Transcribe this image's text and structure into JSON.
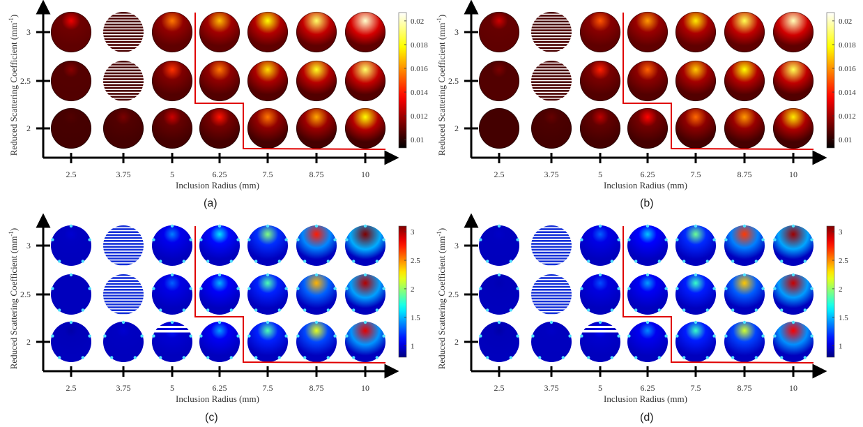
{
  "chart_data": [
    {
      "type": "heatmap",
      "panel": "(a)",
      "colormap": "hot",
      "xlabel": "Inclusion Radius (mm)",
      "ylabel": "Reduced Scattering Coefficient (mm",
      "ylabel_sup": "-1",
      "ylabel_close": ")",
      "x_ticks": [
        "2.5",
        "3.75",
        "5",
        "6.25",
        "7.5",
        "8.75",
        "10"
      ],
      "y_ticks": [
        "3",
        "2.5",
        "2"
      ],
      "colorbar_ticks": [
        "0.02",
        "0.018",
        "0.016",
        "0.014",
        "0.012",
        "0.01"
      ],
      "colorbar_range": [
        0.0093,
        0.0207
      ],
      "values": [
        [
          0.35,
          0.0,
          0.55,
          0.65,
          0.75,
          0.85,
          0.95
        ],
        [
          0.2,
          0.0,
          0.45,
          0.55,
          0.7,
          0.78,
          0.85
        ],
        [
          0.12,
          0.18,
          0.3,
          0.4,
          0.55,
          0.62,
          0.75
        ]
      ],
      "striped_cells": [
        [
          0,
          1
        ],
        [
          1,
          1
        ]
      ],
      "partial_stripe_cells": [],
      "boundary": "staircase"
    },
    {
      "type": "heatmap",
      "panel": "(b)",
      "colormap": "hot",
      "xlabel": "Inclusion Radius (mm)",
      "ylabel": "Reduced Scattering Coefficient (mm",
      "ylabel_sup": "-1",
      "ylabel_close": ")",
      "x_ticks": [
        "2.5",
        "3.75",
        "5",
        "6.25",
        "7.5",
        "8.75",
        "10"
      ],
      "y_ticks": [
        "3",
        "2.5",
        "2"
      ],
      "colorbar_ticks": [
        "0.02",
        "0.018",
        "0.016",
        "0.014",
        "0.012",
        "0.01"
      ],
      "colorbar_range": [
        0.0093,
        0.0207
      ],
      "values": [
        [
          0.3,
          0.0,
          0.5,
          0.6,
          0.72,
          0.83,
          0.93
        ],
        [
          0.18,
          0.0,
          0.42,
          0.52,
          0.67,
          0.75,
          0.83
        ],
        [
          0.1,
          0.15,
          0.28,
          0.38,
          0.53,
          0.6,
          0.72
        ]
      ],
      "striped_cells": [
        [
          0,
          1
        ],
        [
          1,
          1
        ]
      ],
      "partial_stripe_cells": [],
      "boundary": "staircase"
    },
    {
      "type": "heatmap",
      "panel": "(c)",
      "colormap": "jet",
      "xlabel": "Inclusion Radius (mm)",
      "ylabel": "Reduced Scattering Coefficient (mm",
      "ylabel_sup": "-1",
      "ylabel_close": ")",
      "x_ticks": [
        "2.5",
        "3.75",
        "5",
        "6.25",
        "7.5",
        "8.75",
        "10"
      ],
      "y_ticks": [
        "3",
        "2.5",
        "2"
      ],
      "colorbar_ticks": [
        "3",
        "2.5",
        "2",
        "1.5",
        "1"
      ],
      "colorbar_range": [
        0.8,
        3.1
      ],
      "values": [
        [
          0.08,
          0.0,
          0.25,
          0.35,
          0.5,
          0.85,
          1.0
        ],
        [
          0.06,
          0.0,
          0.22,
          0.3,
          0.45,
          0.7,
          0.95
        ],
        [
          0.04,
          0.08,
          0.15,
          0.28,
          0.45,
          0.6,
          0.9
        ]
      ],
      "striped_cells": [
        [
          0,
          1
        ],
        [
          1,
          1
        ]
      ],
      "partial_stripe_cells": [
        [
          2,
          2
        ]
      ],
      "boundary": "staircase"
    },
    {
      "type": "heatmap",
      "panel": "(d)",
      "colormap": "jet",
      "xlabel": "Inclusion Radius (mm)",
      "ylabel": "Reduced Scattering Coefficient (mm",
      "ylabel_sup": "-1",
      "ylabel_close": ")",
      "x_ticks": [
        "2.5",
        "3.75",
        "5",
        "6.25",
        "7.5",
        "8.75",
        "10"
      ],
      "y_ticks": [
        "3",
        "2.5",
        "2"
      ],
      "colorbar_ticks": [
        "3",
        "2.5",
        "2",
        "1.5",
        "1"
      ],
      "colorbar_range": [
        0.8,
        3.1
      ],
      "values": [
        [
          0.07,
          0.0,
          0.22,
          0.32,
          0.48,
          0.82,
          0.97
        ],
        [
          0.05,
          0.0,
          0.2,
          0.28,
          0.43,
          0.68,
          0.93
        ],
        [
          0.04,
          0.07,
          0.13,
          0.26,
          0.43,
          0.58,
          0.88
        ]
      ],
      "striped_cells": [
        [
          0,
          1
        ],
        [
          1,
          1
        ]
      ],
      "partial_stripe_cells": [
        [
          2,
          2
        ]
      ],
      "boundary": "staircase"
    }
  ]
}
